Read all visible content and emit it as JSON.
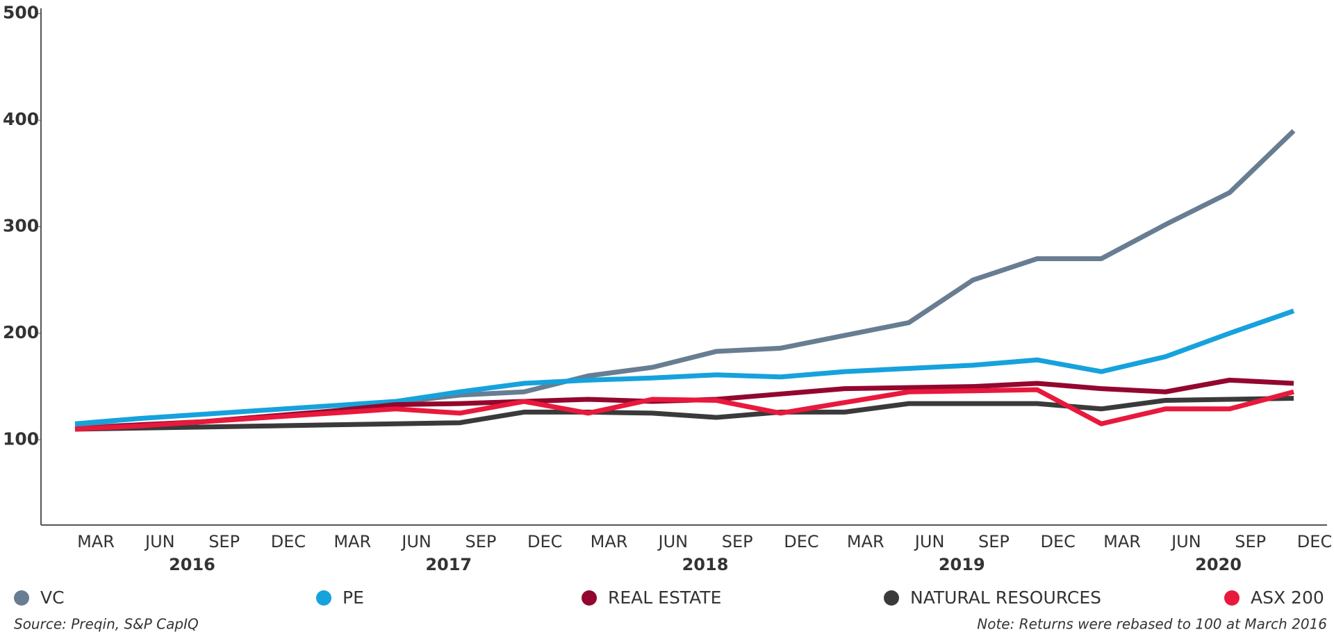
{
  "chart_data": {
    "type": "line",
    "categories": [
      "MAR",
      "JUN",
      "SEP",
      "DEC",
      "MAR",
      "JUN",
      "SEP",
      "DEC",
      "MAR",
      "JUN",
      "SEP",
      "DEC",
      "MAR",
      "JUN",
      "SEP",
      "DEC",
      "MAR",
      "JUN",
      "SEP",
      "DEC"
    ],
    "years": [
      "2016",
      "2017",
      "2018",
      "2019",
      "2020"
    ],
    "series": [
      {
        "name": "VC",
        "color": "#687d92",
        "values": [
          112,
          114,
          117,
          122,
          126,
          135,
          142,
          145,
          160,
          168,
          183,
          186,
          198,
          210,
          250,
          270,
          270,
          302,
          332,
          390
        ]
      },
      {
        "name": "PE",
        "color": "#16a2dc",
        "values": [
          115,
          120,
          124,
          128,
          132,
          136,
          145,
          153,
          156,
          158,
          161,
          159,
          164,
          167,
          170,
          175,
          164,
          178,
          200,
          221
        ]
      },
      {
        "name": "REAL ESTATE",
        "color": "#93072e",
        "values": [
          110,
          114,
          117,
          122,
          127,
          133,
          134,
          136,
          138,
          136,
          138,
          143,
          148,
          149,
          150,
          153,
          148,
          145,
          156,
          153
        ]
      },
      {
        "name": "NATURAL RESOURCES",
        "color": "#3a3a3a",
        "values": [
          110,
          111,
          112,
          113,
          114,
          115,
          116,
          126,
          126,
          125,
          121,
          126,
          126,
          134,
          134,
          134,
          129,
          137,
          138,
          139
        ]
      },
      {
        "name": "ASX 200",
        "color": "#e8193c",
        "values": [
          110,
          113,
          117,
          121,
          125,
          129,
          125,
          136,
          125,
          138,
          137,
          125,
          135,
          145,
          146,
          147,
          115,
          129,
          129,
          145
        ]
      }
    ],
    "ylim": [
      20,
      505
    ],
    "yticks": [
      100,
      200,
      300,
      400,
      500
    ],
    "source": "Source: Preqin, S&P CapIQ",
    "note": "Note: Returns were rebased to 100 at March 2016"
  }
}
